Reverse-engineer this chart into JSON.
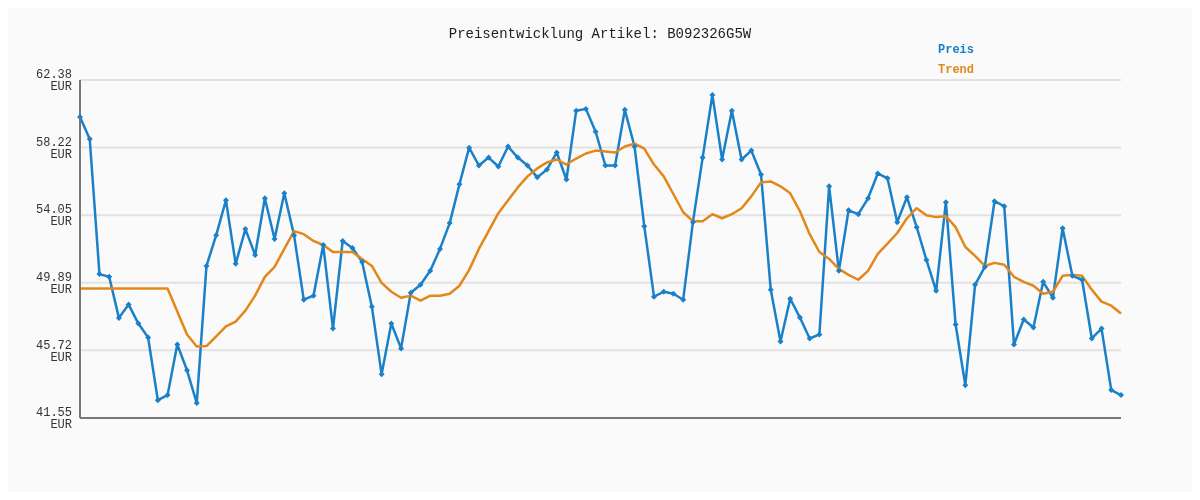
{
  "chart_data": {
    "type": "line",
    "title": "Preisentwicklung Artikel: B092326G5W",
    "categories": [
      null,
      null,
      null,
      null,
      null,
      null,
      null,
      null,
      null,
      null,
      null,
      null,
      null,
      null,
      null,
      null,
      null,
      null,
      null,
      null,
      null,
      null,
      null,
      null,
      null,
      null,
      null,
      null,
      null,
      null,
      null,
      null,
      null,
      null,
      null,
      null,
      null,
      null,
      null,
      null,
      null,
      null,
      null,
      null,
      null,
      null,
      null,
      null,
      null,
      null,
      null,
      null,
      null,
      null,
      null,
      null,
      null,
      null,
      null,
      null,
      null,
      null,
      null,
      null,
      null,
      null,
      null,
      null,
      null,
      null,
      null,
      null,
      null,
      null,
      null,
      null,
      null,
      null,
      null,
      null,
      null,
      null,
      null,
      null,
      null,
      null,
      null,
      null,
      null,
      null,
      null,
      null,
      null,
      null,
      null,
      null,
      null,
      null,
      null,
      null,
      null,
      null,
      null,
      null,
      null,
      null,
      null,
      null
    ],
    "series": [
      {
        "name": "Preis",
        "color": "#1a80c8",
        "marker": "diamond",
        "values": [
          60.1,
          58.75,
          50.42,
          50.25,
          47.72,
          48.54,
          47.37,
          46.51,
          42.65,
          42.96,
          46.08,
          44.49,
          42.47,
          50.92,
          52.82,
          54.97,
          51.05,
          53.19,
          51.6,
          55.09,
          52.58,
          55.4,
          52.82,
          48.84,
          49.09,
          52.21,
          47.06,
          52.46,
          52.03,
          51.17,
          48.41,
          44.25,
          47.37,
          45.84,
          49.27,
          49.76,
          50.62,
          51.97,
          53.56,
          55.95,
          58.21,
          57.11,
          57.6,
          57.05,
          58.28,
          57.6,
          57.11,
          56.38,
          56.87,
          57.91,
          56.25,
          60.48,
          60.6,
          59.19,
          57.11,
          57.11,
          60.54,
          58.28,
          53.37,
          49.03,
          49.33,
          49.21,
          48.84,
          53.62,
          57.6,
          61.46,
          57.48,
          60.48,
          57.48,
          58.03,
          56.56,
          49.45,
          46.27,
          48.9,
          47.74,
          46.45,
          46.7,
          55.83,
          50.62,
          54.35,
          54.11,
          55.09,
          56.62,
          56.32,
          53.62,
          55.15,
          53.31,
          51.29,
          49.39,
          54.85,
          47.31,
          43.57,
          49.76,
          50.86,
          54.91,
          54.6,
          46.08,
          47.62,
          47.13,
          49.94,
          48.96,
          53.25,
          50.31,
          50.07,
          46.45,
          47.06,
          43.27,
          42.96
        ]
      },
      {
        "name": "Trend",
        "color": "#e3871a",
        "marker": "none",
        "values": [
          49.53,
          49.53,
          49.53,
          49.53,
          49.53,
          49.53,
          49.53,
          49.53,
          49.53,
          49.53,
          48.11,
          46.7,
          45.96,
          45.98,
          46.58,
          47.19,
          47.49,
          48.17,
          49.09,
          50.25,
          50.86,
          51.97,
          53.07,
          52.88,
          52.46,
          52.21,
          51.78,
          51.78,
          51.78,
          51.35,
          50.92,
          49.88,
          49.33,
          48.96,
          49.09,
          48.78,
          49.09,
          49.09,
          49.21,
          49.7,
          50.68,
          51.97,
          53.07,
          54.17,
          54.97,
          55.76,
          56.44,
          56.93,
          57.3,
          57.48,
          57.17,
          57.54,
          57.85,
          58.03,
          57.97,
          57.91,
          58.28,
          58.46,
          58.15,
          57.17,
          56.44,
          55.34,
          54.23,
          53.68,
          53.68,
          54.11,
          53.86,
          54.11,
          54.48,
          55.21,
          56.07,
          56.13,
          55.83,
          55.4,
          54.29,
          52.88,
          51.78,
          51.35,
          50.74,
          50.37,
          50.07,
          50.62,
          51.66,
          52.3,
          52.95,
          53.86,
          54.48,
          54.05,
          53.93,
          53.99,
          53.31,
          52.09,
          51.54,
          50.92,
          51.11,
          50.99,
          50.25,
          49.94,
          49.7,
          49.21,
          49.33,
          50.31,
          50.37,
          50.31,
          49.45,
          48.72,
          48.47,
          47.99
        ]
      }
    ],
    "ylim": [
      41.55,
      62.38
    ],
    "yticks": [
      {
        "value": 41.55,
        "label": "41.55 EUR"
      },
      {
        "value": 45.72,
        "label": "45.72 EUR"
      },
      {
        "value": 49.89,
        "label": "49.89 EUR"
      },
      {
        "value": 54.05,
        "label": "54.05 EUR"
      },
      {
        "value": 58.22,
        "label": "58.22 EUR"
      },
      {
        "value": 62.38,
        "label": "62.38 EUR"
      }
    ],
    "grid": "y",
    "legend": "top right",
    "line_style": "solid"
  }
}
